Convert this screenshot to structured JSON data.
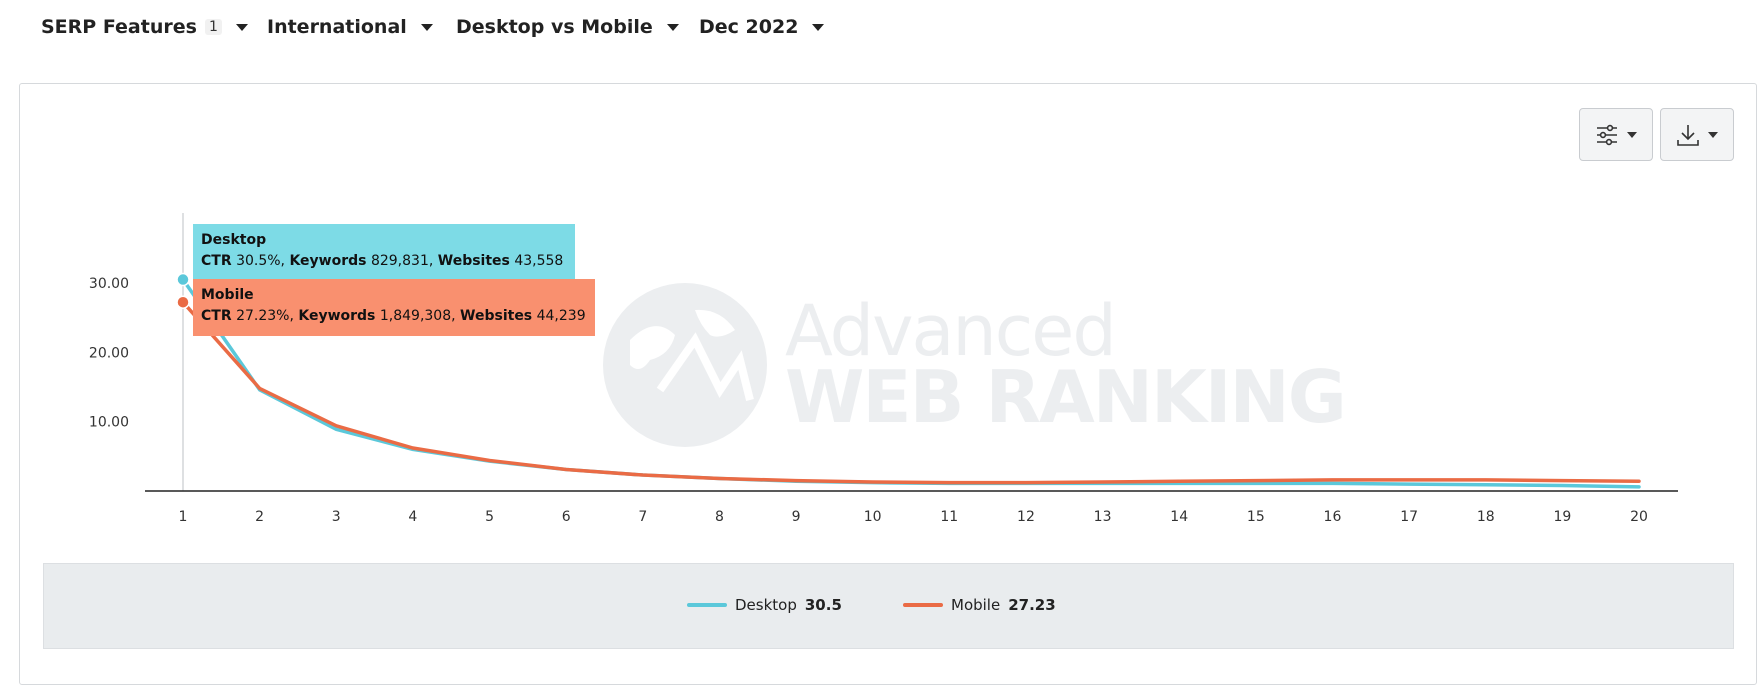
{
  "filters": [
    {
      "label": "SERP Features",
      "badge": "1"
    },
    {
      "label": "International"
    },
    {
      "label": "Desktop vs Mobile"
    },
    {
      "label": "Dec 2022"
    }
  ],
  "toolbar": {
    "settings_icon": "sliders-icon",
    "download_icon": "download-icon"
  },
  "watermark": {
    "line1": "Advanced",
    "line2": "WEB RANKING"
  },
  "colors": {
    "desktop": "#5bc8da",
    "mobile": "#ea6b45",
    "desktop_tooltip": "#7ddbe6",
    "mobile_tooltip": "#f9906f"
  },
  "tooltip": {
    "desktop": {
      "name": "Desktop",
      "ctr_label": "CTR",
      "ctr": "30.5%",
      "keywords_label": "Keywords",
      "keywords": "829,831",
      "websites_label": "Websites",
      "websites": "43,558"
    },
    "mobile": {
      "name": "Mobile",
      "ctr_label": "CTR",
      "ctr": "27.23%",
      "keywords_label": "Keywords",
      "keywords": "1,849,308",
      "websites_label": "Websites",
      "websites": "44,239"
    }
  },
  "legend": [
    {
      "name": "Desktop",
      "value": "30.5"
    },
    {
      "name": "Mobile",
      "value": "27.23"
    }
  ],
  "chart_data": {
    "type": "line",
    "title": "",
    "xlabel": "",
    "ylabel": "",
    "x": [
      1,
      2,
      3,
      4,
      5,
      6,
      7,
      8,
      9,
      10,
      11,
      12,
      13,
      14,
      15,
      16,
      17,
      18,
      19,
      20
    ],
    "yticks": [
      "10.00",
      "20.00",
      "30.00"
    ],
    "ylim": [
      0,
      40
    ],
    "grid": false,
    "legend_position": "bottom",
    "series": [
      {
        "name": "Desktop",
        "values": [
          30.5,
          14.6,
          8.9,
          6.0,
          4.3,
          3.1,
          2.3,
          1.8,
          1.4,
          1.2,
          1.1,
          1.1,
          1.1,
          1.1,
          1.1,
          1.1,
          1.0,
          0.9,
          0.8,
          0.6
        ]
      },
      {
        "name": "Mobile",
        "values": [
          27.23,
          14.8,
          9.4,
          6.2,
          4.4,
          3.1,
          2.3,
          1.8,
          1.5,
          1.3,
          1.2,
          1.2,
          1.3,
          1.4,
          1.5,
          1.6,
          1.6,
          1.6,
          1.5,
          1.4
        ]
      }
    ]
  }
}
